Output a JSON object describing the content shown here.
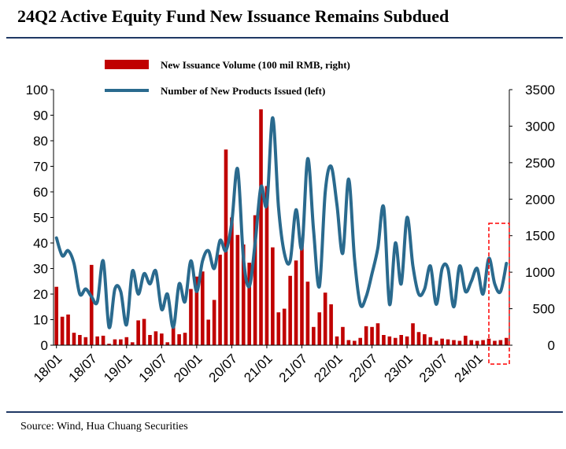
{
  "title": "24Q2 Active Equity Fund New Issuance Remains Subdued",
  "source": "Source: Wind, Hua Chuang Securities",
  "chart_data": {
    "type": "bar+line",
    "title": "24Q2 Active Equity Fund New Issuance Remains Subdued",
    "categories": [
      "18/01",
      "18/02",
      "18/03",
      "18/04",
      "18/05",
      "18/06",
      "18/07",
      "18/08",
      "18/09",
      "18/10",
      "18/11",
      "18/12",
      "19/01",
      "19/02",
      "19/03",
      "19/04",
      "19/05",
      "19/06",
      "19/07",
      "19/08",
      "19/09",
      "19/10",
      "19/11",
      "19/12",
      "20/01",
      "20/02",
      "20/03",
      "20/04",
      "20/05",
      "20/06",
      "20/07",
      "20/08",
      "20/09",
      "20/10",
      "20/11",
      "20/12",
      "21/01",
      "21/02",
      "21/03",
      "21/04",
      "21/05",
      "21/06",
      "21/07",
      "21/08",
      "21/09",
      "21/10",
      "21/11",
      "21/12",
      "22/01",
      "22/02",
      "22/03",
      "22/04",
      "22/05",
      "22/06",
      "22/07",
      "22/08",
      "22/09",
      "22/10",
      "22/11",
      "22/12",
      "23/01",
      "23/02",
      "23/03",
      "23/04",
      "23/05",
      "23/06",
      "23/07",
      "23/08",
      "23/09",
      "23/10",
      "23/11",
      "23/12",
      "24/01",
      "24/02",
      "24/03",
      "24/04",
      "24/05",
      "24/06"
    ],
    "x_tick_labels": [
      "18/01",
      "18/07",
      "19/01",
      "19/07",
      "20/01",
      "20/07",
      "21/01",
      "21/07",
      "22/01",
      "22/07",
      "23/01",
      "23/07",
      "24/01"
    ],
    "series": [
      {
        "name": "New Issuance Volume (100 mil RMB, right)",
        "kind": "bar",
        "axis": "right",
        "color": "#c00000",
        "values": [
          800,
          390,
          420,
          170,
          140,
          110,
          1100,
          120,
          130,
          20,
          80,
          80,
          110,
          40,
          340,
          360,
          140,
          190,
          160,
          40,
          260,
          150,
          170,
          770,
          940,
          1010,
          350,
          620,
          1240,
          2680,
          1750,
          1510,
          1380,
          1130,
          1780,
          3230,
          2180,
          1340,
          450,
          500,
          950,
          1160,
          1400,
          870,
          250,
          450,
          720,
          560,
          120,
          250,
          70,
          60,
          100,
          260,
          250,
          300,
          140,
          120,
          100,
          140,
          120,
          300,
          180,
          150,
          110,
          60,
          90,
          80,
          70,
          60,
          130,
          70,
          60,
          70,
          90,
          60,
          70,
          100
        ]
      },
      {
        "name": "Number of New Products Issued (left)",
        "kind": "line",
        "axis": "left",
        "color": "#2a6a8e",
        "values": [
          42,
          35,
          37,
          32,
          20,
          22,
          19,
          17,
          33,
          7,
          22,
          21,
          8,
          29,
          20,
          28,
          24,
          29,
          14,
          20,
          7,
          24,
          17,
          33,
          21,
          33,
          37,
          30,
          41,
          37,
          48,
          69,
          34,
          23,
          40,
          62,
          55,
          89,
          54,
          36,
          33,
          53,
          38,
          73,
          45,
          23,
          60,
          70,
          55,
          36,
          65,
          34,
          16,
          19,
          28,
          38,
          54,
          16,
          40,
          24,
          50,
          31,
          20,
          22,
          31,
          16,
          30,
          30,
          15,
          31,
          21,
          25,
          30,
          20,
          34,
          24,
          21,
          32
        ]
      }
    ],
    "left_axis": {
      "ylim": [
        0,
        100
      ],
      "ticks": [
        0,
        10,
        20,
        30,
        40,
        50,
        60,
        70,
        80,
        90,
        100
      ]
    },
    "right_axis": {
      "ylim": [
        0,
        3500
      ],
      "ticks": [
        0,
        500,
        1000,
        1500,
        2000,
        2500,
        3000,
        3500
      ]
    },
    "legend": [
      "New Issuance Volume (100 mil RMB, right)",
      "Number of New Products Issued (left)"
    ],
    "legend_placement": "top-center",
    "annotation": "dashed red box highlighting 24Q2"
  }
}
